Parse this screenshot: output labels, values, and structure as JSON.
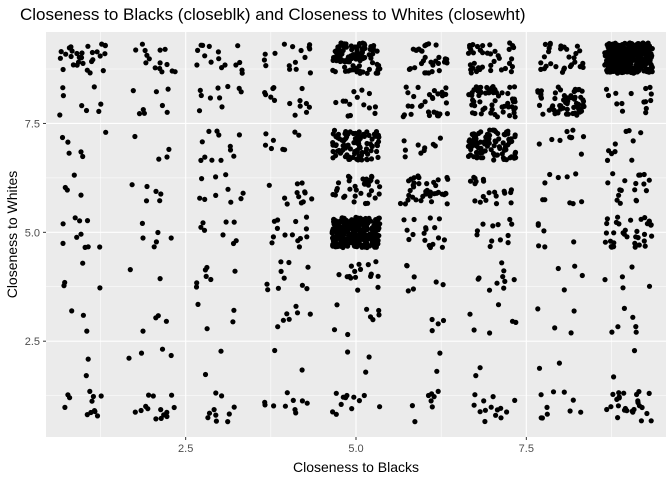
{
  "chart_data": {
    "type": "scatter",
    "title": "Closeness to Blacks (closeblk) and Closeness to Whites (closewht)",
    "xlabel": "Closeness to Blacks",
    "ylabel": "Closeness to Whites",
    "xlim": [
      0.45,
      9.55
    ],
    "ylim": [
      0.3,
      9.6
    ],
    "xticks": [
      2.5,
      5.0,
      7.5
    ],
    "xtick_labels": [
      "2.5",
      "5.0",
      "7.5"
    ],
    "yticks": [
      2.5,
      5.0,
      7.5
    ],
    "ytick_labels": [
      "2.5",
      "5.0",
      "7.5"
    ],
    "grid": true,
    "panel_background": "#ebebeb",
    "grid_color": "#ffffff",
    "point_color": "#000000",
    "jitter": 0.35,
    "x_levels": [
      1,
      2,
      3,
      4,
      5,
      6,
      7,
      8,
      9
    ],
    "y_levels": [
      1,
      2,
      3,
      4,
      5,
      6,
      7,
      8,
      9
    ],
    "counts": [
      [
        12,
        14,
        10,
        10,
        12,
        8,
        14,
        10,
        26
      ],
      [
        2,
        4,
        2,
        2,
        3,
        2,
        2,
        2,
        2
      ],
      [
        3,
        4,
        4,
        7,
        8,
        4,
        6,
        4,
        6
      ],
      [
        4,
        2,
        7,
        10,
        16,
        7,
        10,
        4,
        5
      ],
      [
        10,
        6,
        8,
        14,
        300,
        18,
        12,
        6,
        35
      ],
      [
        4,
        6,
        10,
        12,
        35,
        40,
        20,
        10,
        18
      ],
      [
        6,
        4,
        12,
        8,
        100,
        10,
        100,
        10,
        10
      ],
      [
        8,
        8,
        10,
        14,
        14,
        30,
        60,
        60,
        15
      ],
      [
        30,
        15,
        16,
        16,
        100,
        30,
        40,
        30,
        300
      ]
    ]
  }
}
